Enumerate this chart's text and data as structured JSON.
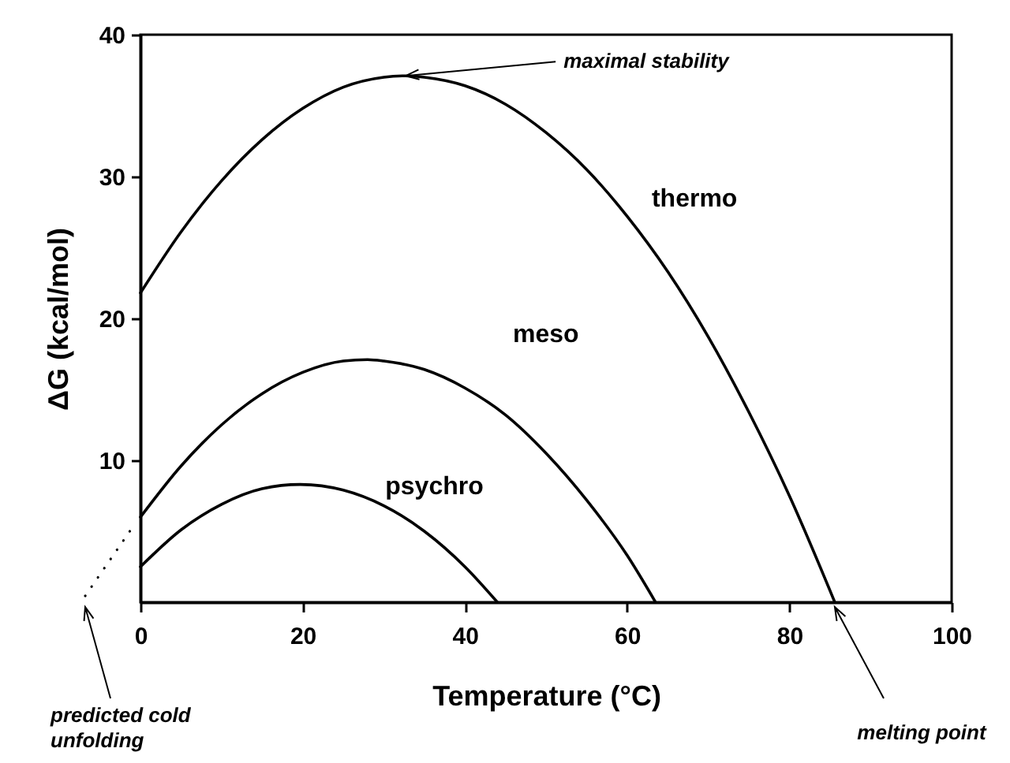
{
  "chart_data": {
    "type": "line",
    "xlabel": "Temperature (°C)",
    "ylabel": "ΔG (kcal/mol)",
    "xlim": [
      0,
      100
    ],
    "xticks": [
      0,
      20,
      40,
      60,
      80,
      100
    ],
    "ylim": [
      0,
      40
    ],
    "yticks": [
      10,
      20,
      30,
      40
    ],
    "line_style": "solid",
    "series": [
      {
        "name": "thermo",
        "color": "#000000",
        "x": [
          0,
          5,
          10,
          15,
          20,
          25,
          30,
          32.7,
          35,
          40,
          45,
          50,
          55,
          60,
          65,
          70,
          75,
          80,
          85.6
        ],
        "values": [
          21.8,
          26.1,
          29.7,
          32.6,
          34.8,
          36.3,
          37.0,
          37.1,
          37.0,
          36.4,
          35.1,
          33.1,
          30.5,
          27.2,
          23.3,
          18.7,
          13.4,
          7.5,
          0
        ]
      },
      {
        "name": "meso",
        "color": "#000000",
        "x": [
          0,
          5,
          10,
          15,
          20,
          25,
          28,
          30,
          35,
          40,
          45,
          50,
          55,
          60,
          63.5
        ],
        "values": [
          6.0,
          9.6,
          12.5,
          14.7,
          16.2,
          17.0,
          17.1,
          17.0,
          16.4,
          15.1,
          13.2,
          10.5,
          7.2,
          3.3,
          0
        ]
      },
      {
        "name": "psychro",
        "color": "#000000",
        "x": [
          0,
          5,
          10,
          15,
          19.7,
          25,
          30,
          35,
          40,
          44
        ],
        "values": [
          2.5,
          5.1,
          6.9,
          8.0,
          8.3,
          7.9,
          6.8,
          5.0,
          2.5,
          0
        ]
      }
    ],
    "annotations": [
      {
        "text": "maximal stability",
        "x": 32.7,
        "y": 37.1
      },
      {
        "text": "melting point",
        "x": 85.6,
        "y": 0
      },
      "predicted cold unfolding"
    ]
  }
}
